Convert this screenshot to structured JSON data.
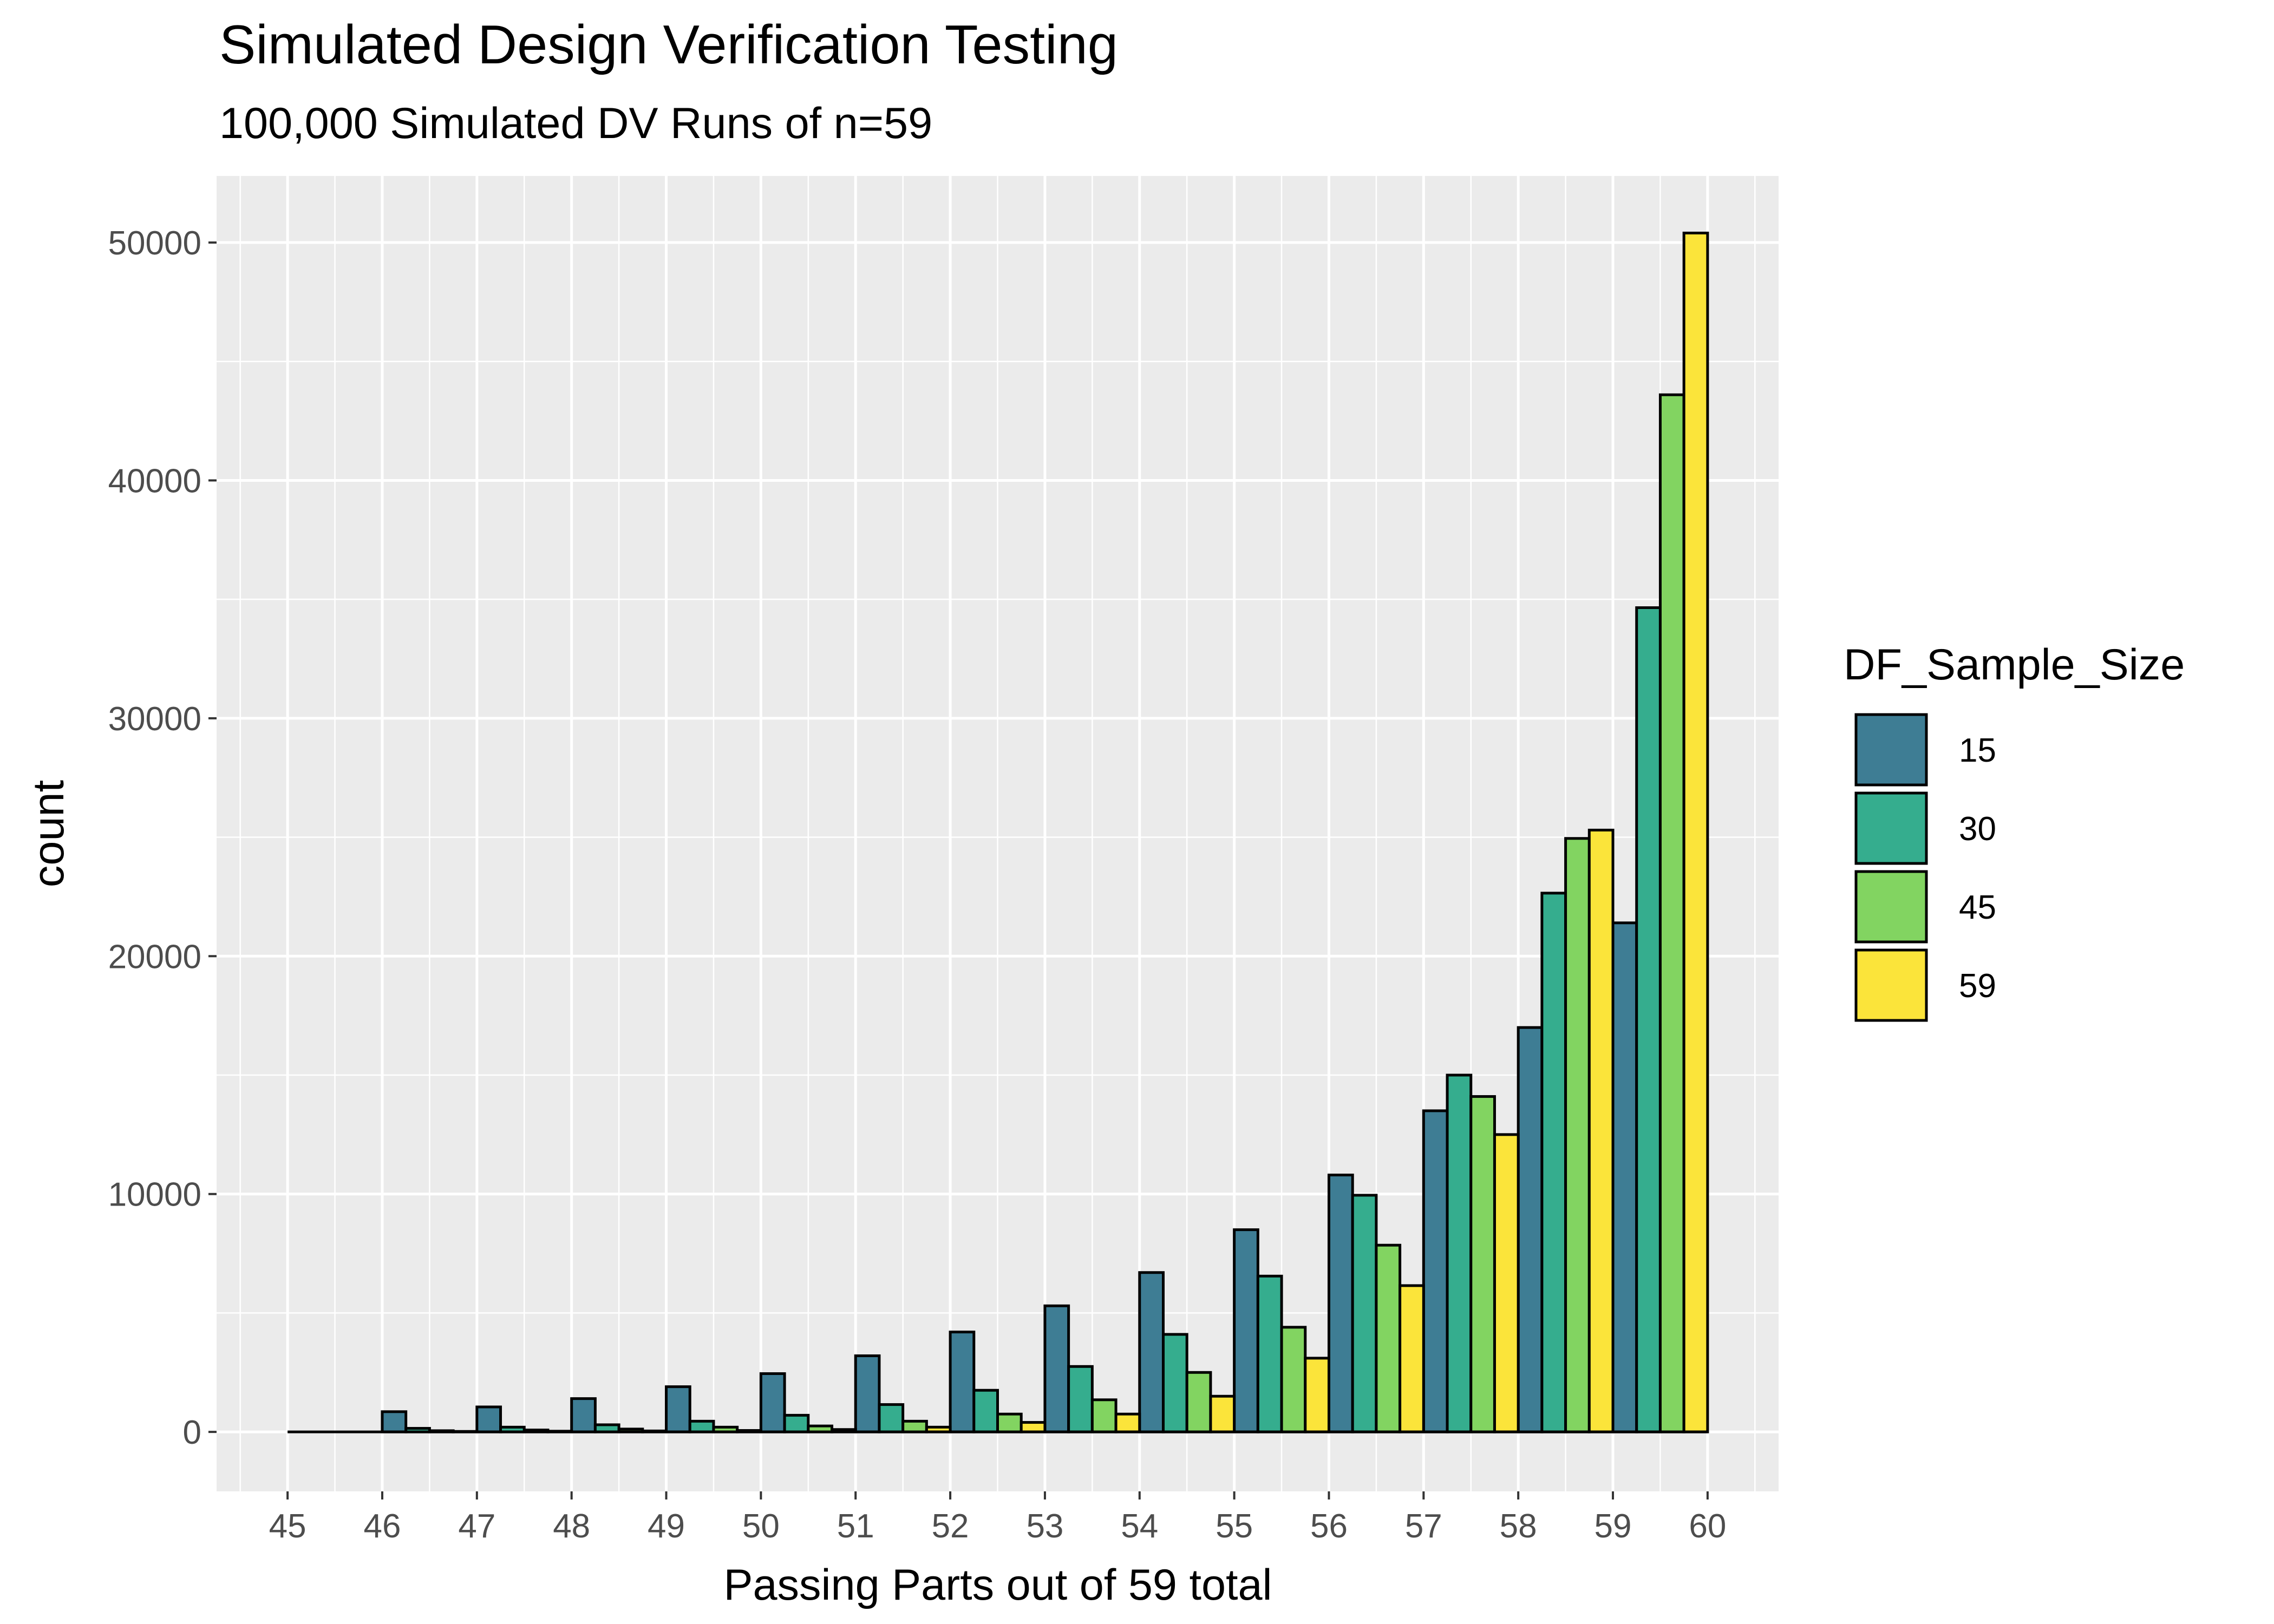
{
  "chart_data": {
    "type": "bar",
    "title": "Simulated Design Verification Testing",
    "subtitle": "100,000 Simulated DV Runs of n=59",
    "xlabel": "Passing Parts out of 59 total",
    "ylabel": "count",
    "xlim": [
      44.25,
      60.75
    ],
    "ylim": [
      -2500,
      52800
    ],
    "x_ticks": [
      45,
      46,
      47,
      48,
      49,
      50,
      51,
      52,
      53,
      54,
      55,
      56,
      57,
      58,
      59,
      60
    ],
    "y_ticks": [
      0,
      10000,
      20000,
      30000,
      40000,
      50000
    ],
    "y_tick_labels": [
      "0",
      "10000",
      "20000",
      "30000",
      "40000",
      "50000"
    ],
    "x_positions": [
      45,
      46,
      47,
      48,
      49,
      50,
      51,
      52,
      53,
      54,
      55,
      56,
      57,
      58,
      59
    ],
    "grid": true,
    "legend_title": "DF_Sample_Size",
    "legend_position": "right",
    "series": [
      {
        "name": "15",
        "color": "#3e7d94",
        "values": [
          0,
          850,
          1050,
          1400,
          1900,
          2450,
          3200,
          4200,
          5300,
          6700,
          8500,
          10800,
          13500,
          17000,
          21400
        ]
      },
      {
        "name": "30",
        "color": "#35ad8e",
        "values": [
          0,
          150,
          200,
          300,
          450,
          700,
          1150,
          1750,
          2750,
          4100,
          6550,
          9950,
          15000,
          22650,
          34650
        ]
      },
      {
        "name": "45",
        "color": "#82d461",
        "values": [
          0,
          50,
          80,
          120,
          200,
          250,
          450,
          750,
          1350,
          2500,
          4400,
          7850,
          14100,
          24950,
          43600
        ]
      },
      {
        "name": "59",
        "color": "#fbe43a",
        "values": [
          0,
          20,
          30,
          40,
          60,
          100,
          200,
          400,
          750,
          1500,
          3100,
          6150,
          12500,
          25300,
          50400
        ]
      }
    ]
  }
}
